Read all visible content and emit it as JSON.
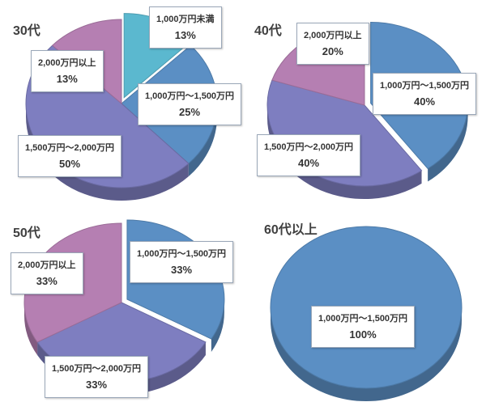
{
  "charts": [
    {
      "title": "30代",
      "chart_data": {
        "type": "pie",
        "title": "30代",
        "slices": [
          {
            "label": "1,000万円未満",
            "value": 13,
            "percent": "13%",
            "color": "#5bb8cf"
          },
          {
            "label": "1,000万円～1,500万円",
            "value": 25,
            "percent": "25%",
            "color": "#5b8fc4"
          },
          {
            "label": "1,500万円～2,000万円",
            "value": 50,
            "percent": "50%",
            "color": "#7e7ec0"
          },
          {
            "label": "2,000万円以上",
            "value": 13,
            "percent": "13%",
            "color": "#b57fb2"
          }
        ]
      }
    },
    {
      "title": "40代",
      "chart_data": {
        "type": "pie",
        "title": "40代",
        "slices": [
          {
            "label": "1,000万円～1,500万円",
            "value": 40,
            "percent": "40%",
            "color": "#5b8fc4"
          },
          {
            "label": "1,500万円～2,000万円",
            "value": 40,
            "percent": "40%",
            "color": "#7e7ec0"
          },
          {
            "label": "2,000万円以上",
            "value": 20,
            "percent": "20%",
            "color": "#b57fb2"
          }
        ]
      }
    },
    {
      "title": "50代",
      "chart_data": {
        "type": "pie",
        "title": "50代",
        "slices": [
          {
            "label": "1,000万円～1,500万円",
            "value": 33,
            "percent": "33%",
            "color": "#5b8fc4"
          },
          {
            "label": "1,500万円～2,000万円",
            "value": 33,
            "percent": "33%",
            "color": "#7e7ec0"
          },
          {
            "label": "2,000万円以上",
            "value": 33,
            "percent": "33%",
            "color": "#b57fb2"
          }
        ]
      }
    },
    {
      "title": "60代以上",
      "chart_data": {
        "type": "pie",
        "title": "60代以上",
        "slices": [
          {
            "label": "1,000万円～1,500万円",
            "value": 100,
            "percent": "100%",
            "color": "#5b8fc4"
          }
        ]
      }
    }
  ]
}
